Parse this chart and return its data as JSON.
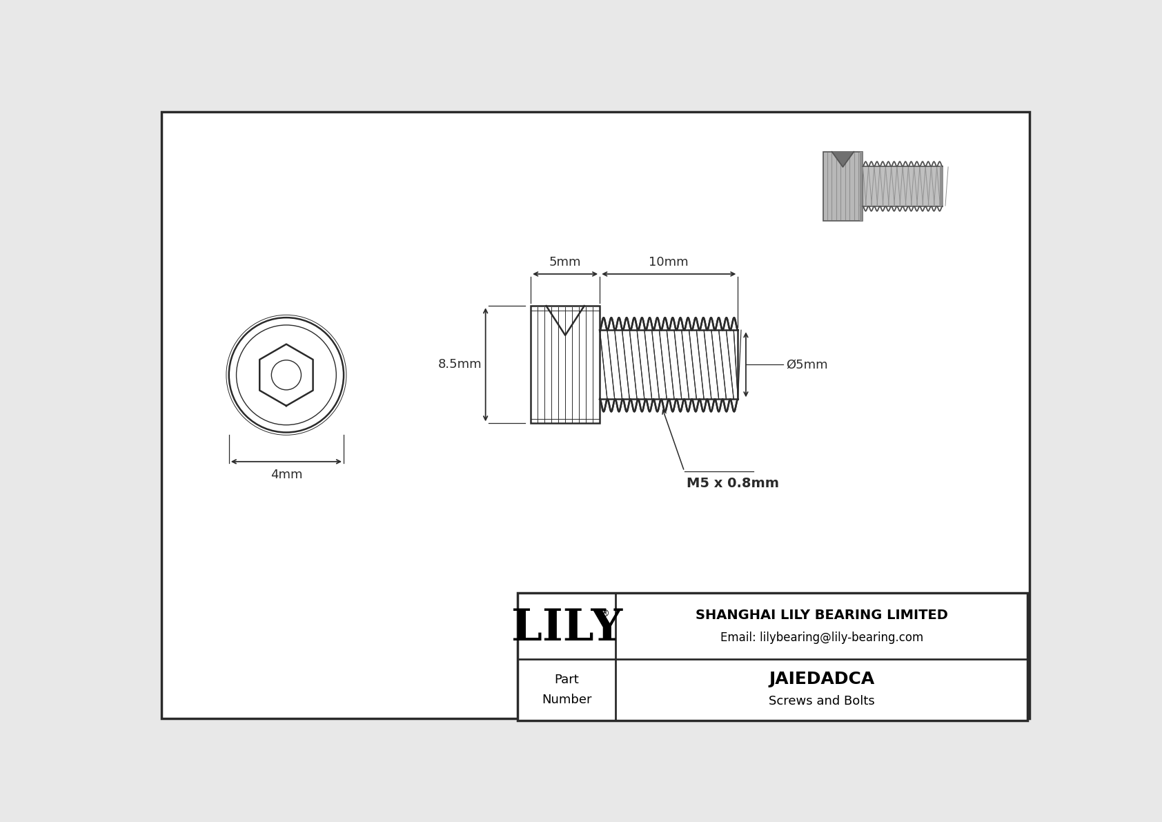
{
  "bg_color": "#e8e8e8",
  "border_color": "#333333",
  "line_color": "#2a2a2a",
  "title_company": "SHANGHAI LILY BEARING LIMITED",
  "title_email": "Email: lilybearing@lily-bearing.com",
  "part_number": "JAIEDADCA",
  "part_category": "Screws and Bolts",
  "part_label": "Part\nNumber",
  "lily_logo": "LILY",
  "dim_head_width": "5mm",
  "dim_thread_length": "10mm",
  "dim_total_height": "8.5mm",
  "dim_thread_od": "Ø5mm",
  "dim_head_od": "4mm",
  "thread_label": "M5 x 0.8mm"
}
